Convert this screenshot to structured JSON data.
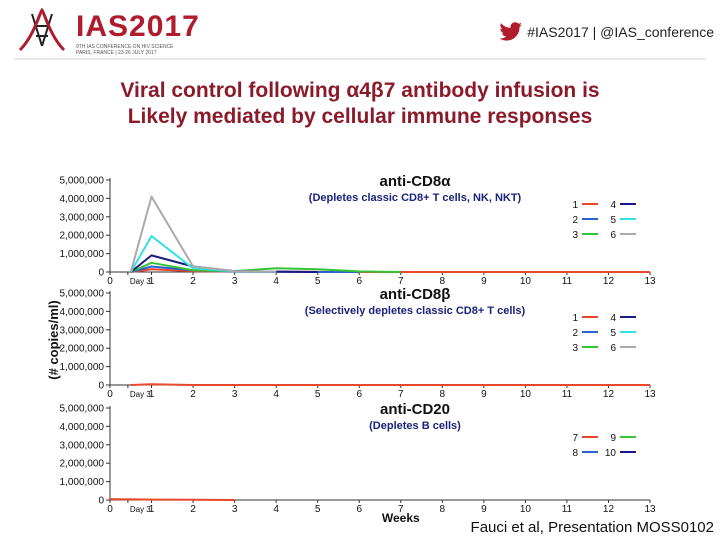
{
  "header": {
    "logo_text": "IAS2017",
    "logo_sub1": "9TH IAS CONFERENCE ON HIV SCIENCE",
    "logo_sub2": "PARIS, FRANCE | 23-26 JULY 2017",
    "hashtag": "#IAS2017 | @IAS_conference"
  },
  "slide": {
    "title_line1": "Viral control following α4β7 antibody infusion is",
    "title_line2": "Likely mediated by cellular immune responses"
  },
  "colors": {
    "1": "#e8472a",
    "2": "#2e5fd1",
    "3": "#35c435",
    "4": "#1a1a80",
    "5": "#33e0e8",
    "6": "#aaaaaa",
    "7": "#e8472a",
    "8": "#2e5fd1",
    "9": "#35c435",
    "10": "#1a1a80"
  },
  "chart_data": {
    "type": "line",
    "ylabel": "(# copies/ml)",
    "xlabel": "Weeks",
    "x_ticks": [
      "0",
      "Day 3",
      "1",
      "2",
      "3",
      "4",
      "5",
      "6",
      "7",
      "8",
      "9",
      "10",
      "11",
      "12",
      "13"
    ],
    "y_ticks": [
      "0",
      "1,000,000",
      "2,000,000",
      "3,000,000",
      "4,000,000",
      "5,000,000"
    ],
    "ylim": [
      0,
      5000000
    ],
    "xlim": [
      0,
      13
    ],
    "panels": [
      {
        "title": "anti-CD8α",
        "subtitle": "(Depletes classic CD8+ T cells, NK, NKT)",
        "legend": [
          [
            "1",
            "4"
          ],
          [
            "2",
            "5"
          ],
          [
            "3",
            "6"
          ]
        ],
        "series": [
          {
            "name": "1",
            "x": [
              0.5,
              1,
              2,
              3,
              4,
              5,
              6,
              7,
              8,
              13
            ],
            "y": [
              0,
              150000,
              50000,
              20000,
              10000,
              5000,
              0,
              0,
              0,
              0
            ]
          },
          {
            "name": "2",
            "x": [
              0.5,
              1,
              2,
              3,
              4,
              5,
              6
            ],
            "y": [
              0,
              300000,
              100000,
              20000,
              10000,
              0,
              0
            ]
          },
          {
            "name": "3",
            "x": [
              0.5,
              1,
              2,
              3,
              4,
              5,
              6,
              7
            ],
            "y": [
              0,
              500000,
              100000,
              50000,
              200000,
              150000,
              30000,
              0
            ]
          },
          {
            "name": "4",
            "x": [
              0.5,
              1,
              2,
              3,
              4,
              5
            ],
            "y": [
              0,
              900000,
              300000,
              50000,
              20000,
              0
            ]
          },
          {
            "name": "5",
            "x": [
              0.5,
              1,
              2,
              3,
              4
            ],
            "y": [
              0,
              1950000,
              200000,
              30000,
              10000
            ]
          },
          {
            "name": "6",
            "x": [
              0.5,
              1,
              2,
              3,
              4
            ],
            "y": [
              0,
              4100000,
              300000,
              50000,
              20000
            ]
          }
        ]
      },
      {
        "title": "anti-CD8β",
        "subtitle": "(Selectively depletes classic CD8+ T cells)",
        "legend": [
          [
            "1",
            "4"
          ],
          [
            "2",
            "5"
          ],
          [
            "3",
            "6"
          ]
        ],
        "series": [
          {
            "name": "1",
            "x": [
              0.5,
              1,
              2,
              3,
              4,
              5,
              6,
              7,
              8,
              9,
              10,
              11,
              12,
              13
            ],
            "y": [
              0,
              40000,
              0,
              0,
              0,
              0,
              0,
              0,
              0,
              0,
              0,
              0,
              0,
              0
            ]
          }
        ]
      },
      {
        "title": "anti-CD20",
        "subtitle": "(Depletes B cells)",
        "legend": [
          [
            "7",
            "9"
          ],
          [
            "8",
            "10"
          ]
        ],
        "series": [
          {
            "name": "7",
            "x": [
              0,
              1,
              2,
              3
            ],
            "y": [
              50000,
              20000,
              10000,
              0
            ]
          }
        ]
      }
    ]
  },
  "citation": "Fauci et al, Presentation MOSS0102"
}
